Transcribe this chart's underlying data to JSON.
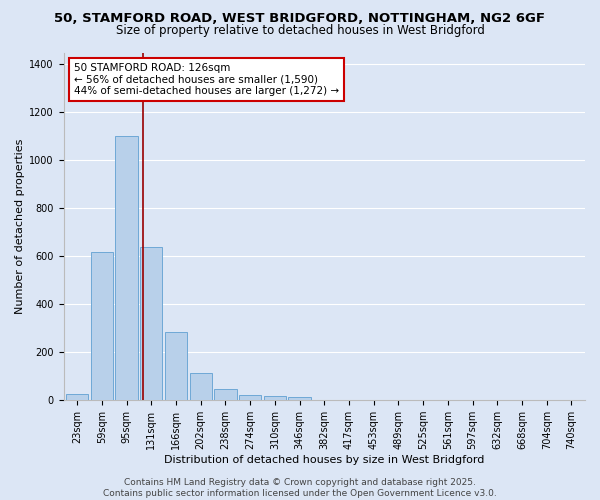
{
  "title_line1": "50, STAMFORD ROAD, WEST BRIDGFORD, NOTTINGHAM, NG2 6GF",
  "title_line2": "Size of property relative to detached houses in West Bridgford",
  "xlabel": "Distribution of detached houses by size in West Bridgford",
  "ylabel": "Number of detached properties",
  "categories": [
    "23sqm",
    "59sqm",
    "95sqm",
    "131sqm",
    "166sqm",
    "202sqm",
    "238sqm",
    "274sqm",
    "310sqm",
    "346sqm",
    "382sqm",
    "417sqm",
    "453sqm",
    "489sqm",
    "525sqm",
    "561sqm",
    "597sqm",
    "632sqm",
    "668sqm",
    "704sqm",
    "740sqm"
  ],
  "bar_heights": [
    25,
    620,
    1100,
    640,
    285,
    115,
    48,
    20,
    18,
    12,
    0,
    0,
    0,
    0,
    0,
    0,
    0,
    0,
    0,
    0,
    0
  ],
  "bar_color": "#b8d0ea",
  "bar_edge_color": "#6fa8d6",
  "bg_color": "#dce6f5",
  "grid_color": "#ffffff",
  "vline_color": "#990000",
  "vline_x_index": 2.65,
  "annotation_text": "50 STAMFORD ROAD: 126sqm\n← 56% of detached houses are smaller (1,590)\n44% of semi-detached houses are larger (1,272) →",
  "annotation_box_facecolor": "#ffffff",
  "annotation_box_edgecolor": "#cc0000",
  "ylim": [
    0,
    1450
  ],
  "yticks": [
    0,
    200,
    400,
    600,
    800,
    1000,
    1200,
    1400
  ],
  "footer_line1": "Contains HM Land Registry data © Crown copyright and database right 2025.",
  "footer_line2": "Contains public sector information licensed under the Open Government Licence v3.0.",
  "title_fontsize": 9.5,
  "subtitle_fontsize": 8.5,
  "axis_label_fontsize": 8,
  "tick_fontsize": 7,
  "annotation_fontsize": 7.5,
  "footer_fontsize": 6.5
}
